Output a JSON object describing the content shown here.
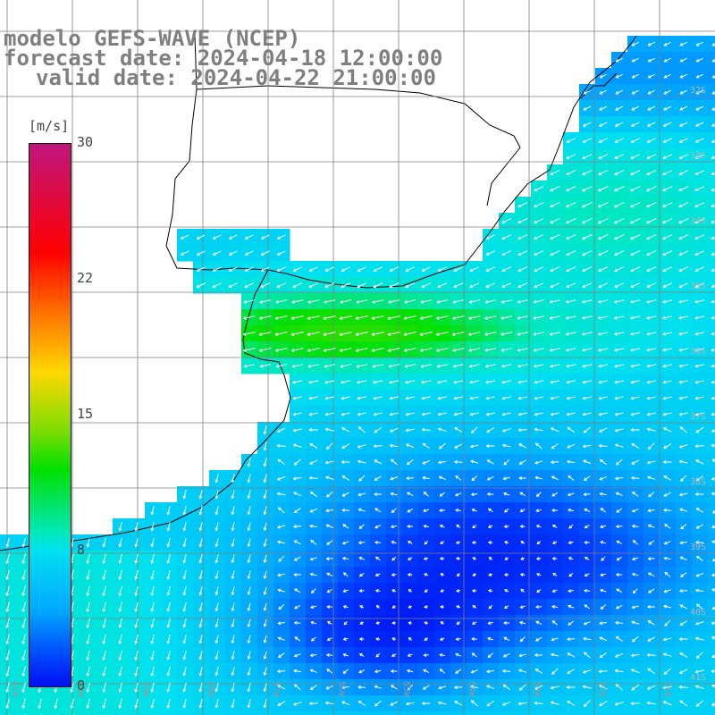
{
  "title": {
    "line1": "modelo GEFS-WAVE (NCEP)",
    "line2": "forecast date: 2024-04-18 12:00:00",
    "line3": "valid date: 2024-04-22 21:00:00"
  },
  "colorbar": {
    "unit": "[m/s]",
    "ticks": [
      "30",
      "22",
      "15",
      "8",
      "0"
    ],
    "colors": [
      "#c0157f",
      "#ff0000",
      "#ff7000",
      "#ffd800",
      "#00e000",
      "#00e0f0",
      "#0040ff"
    ]
  },
  "map": {
    "lat_labels": [
      "32S",
      "33S",
      "34S",
      "35S",
      "36S",
      "37S",
      "38S",
      "39S",
      "40S",
      "41S"
    ],
    "lon_labels": [
      "61W",
      "60W",
      "59W",
      "58W",
      "57W",
      "56W",
      "55W",
      "54W",
      "53W",
      "52W",
      "51W"
    ],
    "land_color": "#ffffff",
    "grid_color": "#808080",
    "arrow_color": "#ffffff"
  }
}
